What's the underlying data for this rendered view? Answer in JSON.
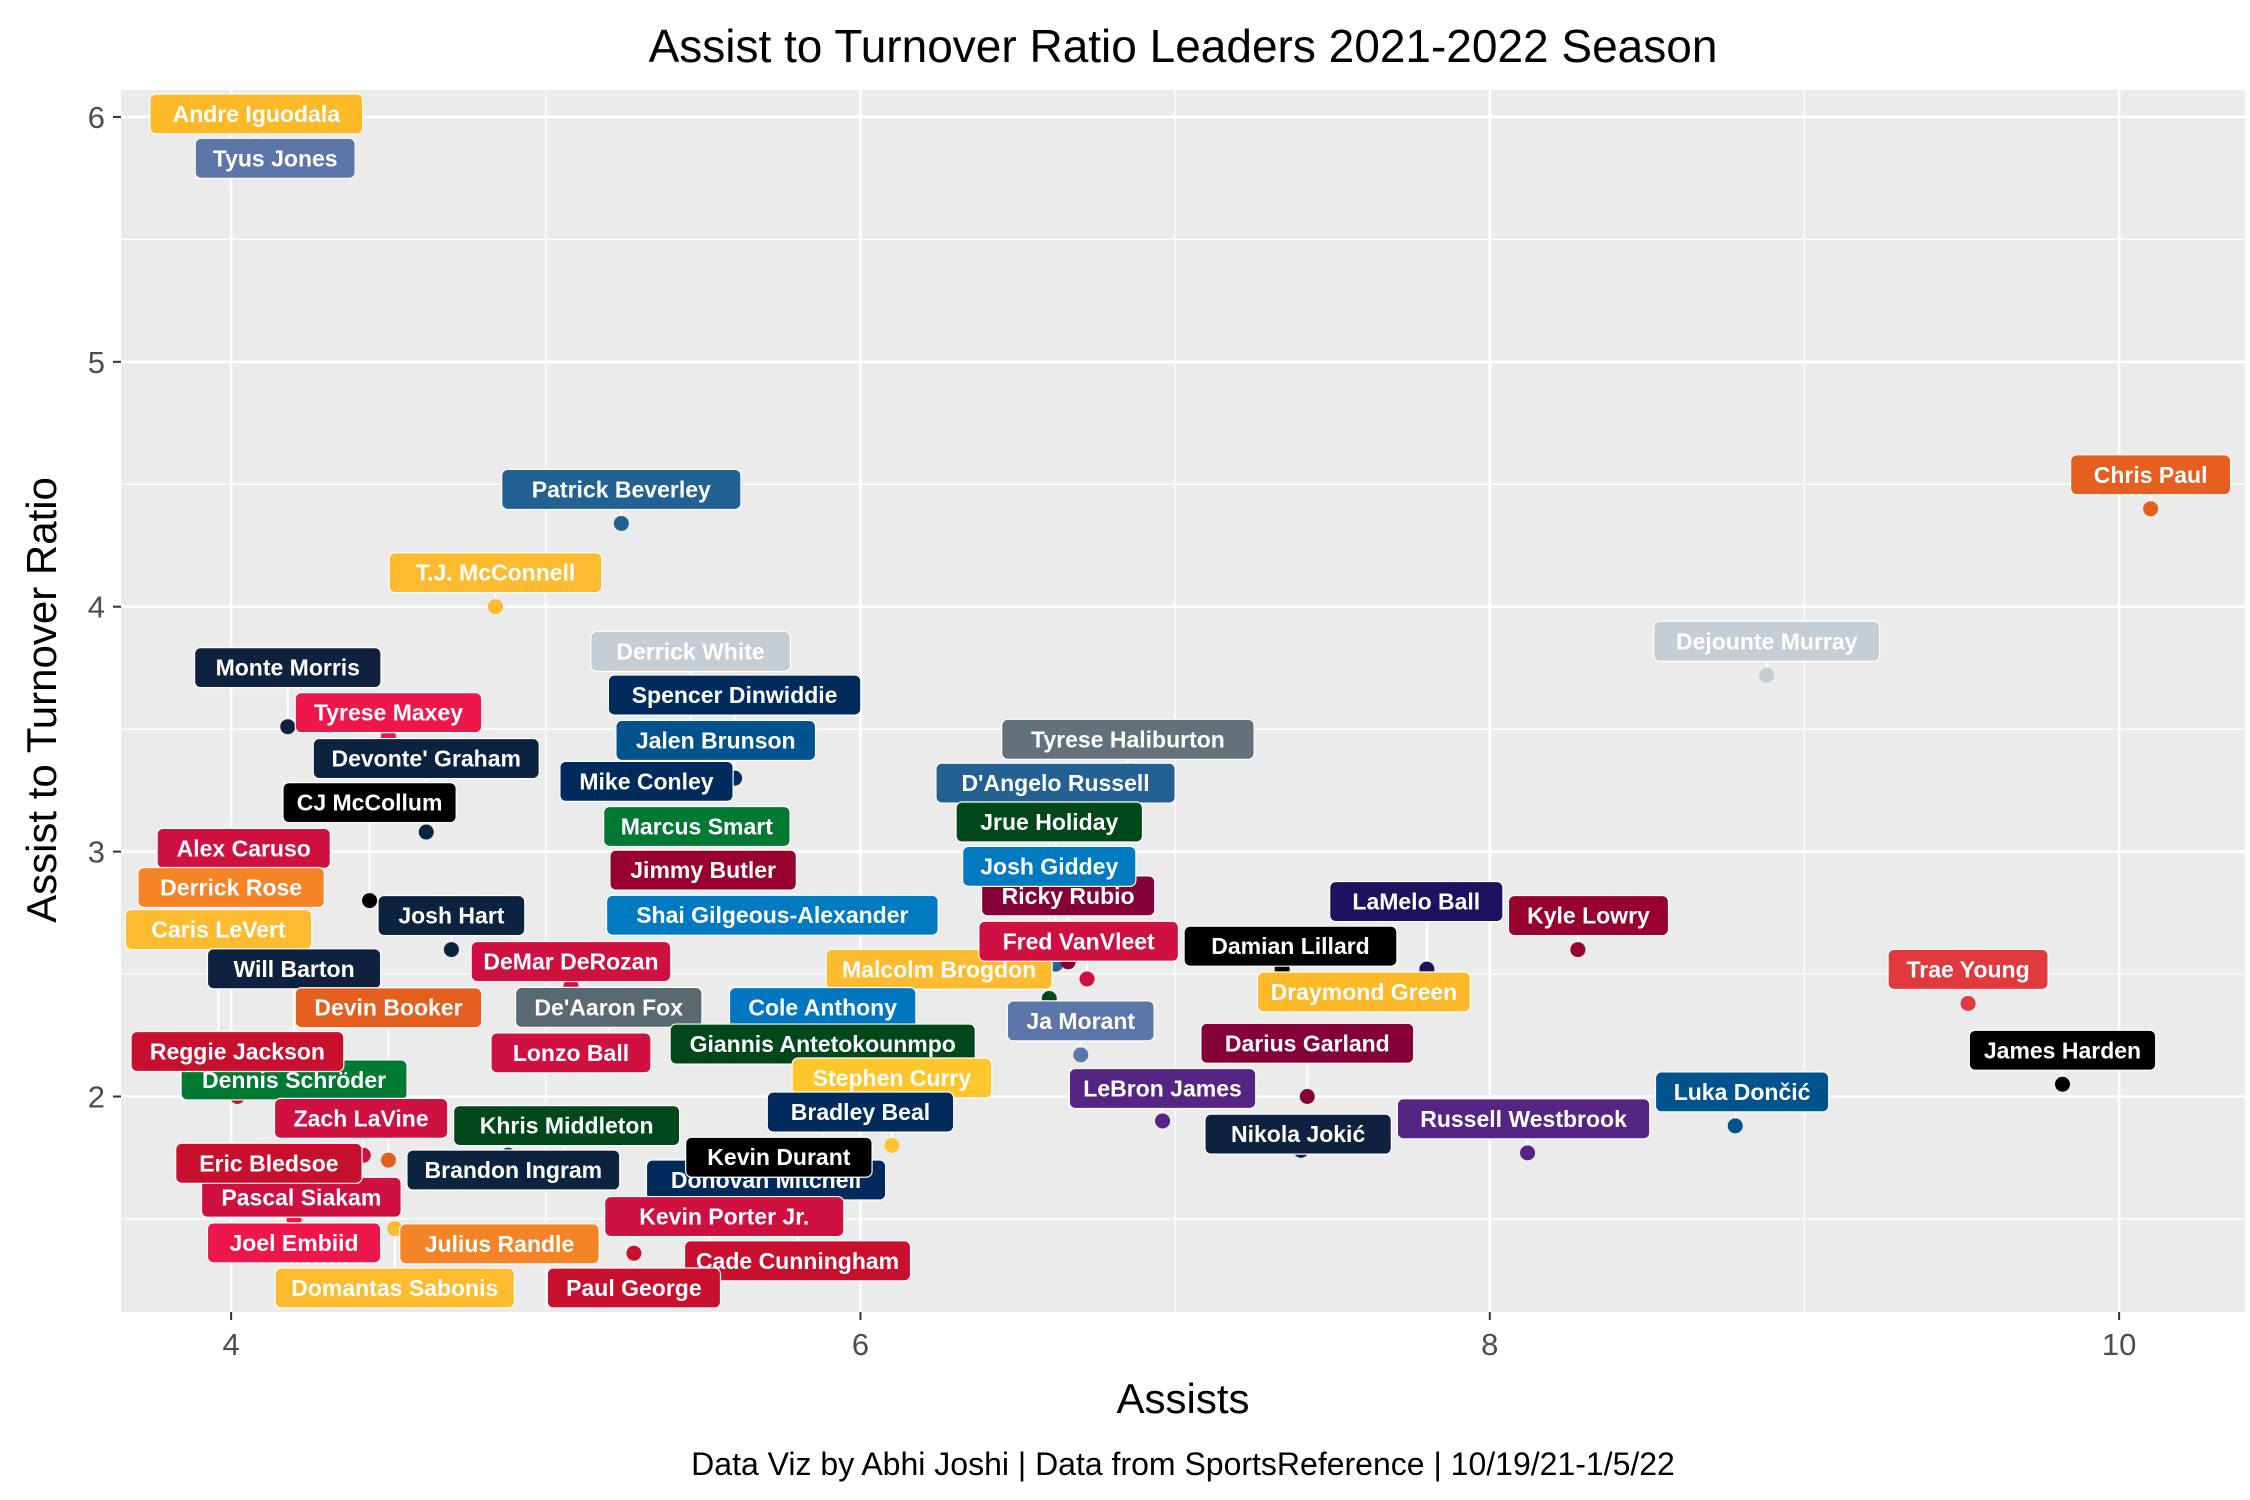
{
  "chart_data": {
    "type": "scatter",
    "title": "Assist to Turnover Ratio Leaders 2021-2022 Season",
    "xlabel": "Assists",
    "ylabel": "Assist to Turnover Ratio",
    "caption": "Data Viz by Abhi Joshi | Data from SportsReference | 10/19/21-1/5/22",
    "xlim": [
      3.65,
      10.4
    ],
    "ylim": [
      1.12,
      6.11
    ],
    "x_ticks": [
      "4",
      "6",
      "8",
      "10"
    ],
    "y_ticks": [
      "2",
      "3",
      "4",
      "5",
      "6"
    ],
    "grid": true,
    "points": [
      {
        "name": "Andre Iguodala",
        "x": 4.08,
        "y": 5.86,
        "color": "#FDB927",
        "text": "#ffffff"
      },
      {
        "name": "Tyus Jones",
        "x": 4.14,
        "y": 5.86,
        "color": "#5D76A9",
        "text": "#ffffff"
      },
      {
        "name": "Chris Paul",
        "x": 10.1,
        "y": 4.4,
        "color": "#E56020",
        "text": "#ffffff"
      },
      {
        "name": "Patrick Beverley",
        "x": 5.24,
        "y": 4.34,
        "color": "#236192",
        "text": "#ffffff"
      },
      {
        "name": "T.J. McConnell",
        "x": 4.84,
        "y": 4.0,
        "color": "#FDBB30",
        "text": "#ffffff"
      },
      {
        "name": "Derrick White",
        "x": 5.46,
        "y": 3.45,
        "color": "#C4CED4",
        "text": "#ffffff"
      },
      {
        "name": "Dejounte Murray",
        "x": 8.88,
        "y": 3.72,
        "color": "#C4CED4",
        "text": "#ffffff"
      },
      {
        "name": "Monte Morris",
        "x": 4.18,
        "y": 3.51,
        "color": "#0E2240",
        "text": "#ffffff"
      },
      {
        "name": "Mike Conley",
        "x": 5.32,
        "y": 3.31,
        "color": "#002B5C",
        "text": "#ffffff"
      },
      {
        "name": "Spencer Dinwiddie",
        "x": 5.6,
        "y": 3.3,
        "color": "#002B5C",
        "text": "#ffffff"
      },
      {
        "name": "Devonte' Graham",
        "x": 4.62,
        "y": 3.08,
        "color": "#0C2340",
        "text": "#ffffff"
      },
      {
        "name": "Tyrese Maxey",
        "x": 4.5,
        "y": 3.47,
        "color": "#ED174C",
        "text": "#ffffff"
      },
      {
        "name": "Jalen Brunson",
        "x": 5.54,
        "y": 3.24,
        "color": "#00538C",
        "text": "#ffffff"
      },
      {
        "name": "Malcolm Brogdon",
        "x": 6.25,
        "y": 2.5,
        "color": "#FDBB30",
        "text": "#ffffff"
      },
      {
        "name": "Tyrese Haliburton",
        "x": 6.85,
        "y": 3.1,
        "color": "#63727A",
        "text": "#ffffff"
      },
      {
        "name": "Alex Caruso",
        "x": 4.04,
        "y": 2.67,
        "color": "#CE1141",
        "text": "#ffffff"
      },
      {
        "name": "Marcus Smart",
        "x": 5.48,
        "y": 2.9,
        "color": "#007A33",
        "text": "#ffffff"
      },
      {
        "name": "D'Angelo Russell",
        "x": 6.62,
        "y": 2.54,
        "color": "#236192",
        "text": "#ffffff"
      },
      {
        "name": "Ricky Rubio",
        "x": 6.66,
        "y": 2.55,
        "color": "#860038",
        "text": "#ffffff"
      },
      {
        "name": "Damian Lillard",
        "x": 7.34,
        "y": 2.52,
        "color": "#000000",
        "text": "#ffffff"
      },
      {
        "name": "Derrick Rose",
        "x": 4.0,
        "y": 2.67,
        "color": "#F58426",
        "text": "#ffffff"
      },
      {
        "name": "CJ McCollum",
        "x": 4.44,
        "y": 2.8,
        "color": "#000000",
        "text": "#ffffff"
      },
      {
        "name": "Jimmy Butler",
        "x": 5.5,
        "y": 2.9,
        "color": "#98002E",
        "text": "#ffffff"
      },
      {
        "name": "Shai Gilgeous-Alexander",
        "x": 5.72,
        "y": 2.78,
        "color": "#007AC1",
        "text": "#ffffff"
      },
      {
        "name": "Josh Giddey",
        "x": 6.6,
        "y": 2.55,
        "color": "#007AC1",
        "text": "#ffffff"
      },
      {
        "name": "Fred VanVleet",
        "x": 6.72,
        "y": 2.48,
        "color": "#CE1141",
        "text": "#ffffff"
      },
      {
        "name": "LaMelo Ball",
        "x": 7.8,
        "y": 2.52,
        "color": "#1D1160",
        "text": "#ffffff"
      },
      {
        "name": "Kyle Lowry",
        "x": 8.28,
        "y": 2.6,
        "color": "#98002E",
        "text": "#ffffff"
      },
      {
        "name": "Josh Hart",
        "x": 4.7,
        "y": 2.6,
        "color": "#0C2340",
        "text": "#ffffff"
      },
      {
        "name": "DeMar DeRozan",
        "x": 5.08,
        "y": 2.45,
        "color": "#CE1141",
        "text": "#ffffff"
      },
      {
        "name": "Trae Young",
        "x": 9.52,
        "y": 2.38,
        "color": "#E03A3E",
        "text": "#ffffff"
      },
      {
        "name": "Caris LeVert",
        "x": 3.96,
        "y": 2.23,
        "color": "#FDBB30",
        "text": "#ffffff"
      },
      {
        "name": "Cole Anthony",
        "x": 5.88,
        "y": 2.12,
        "color": "#0077C0",
        "text": "#ffffff"
      },
      {
        "name": "Jrue Holiday",
        "x": 6.6,
        "y": 2.4,
        "color": "#00471B",
        "text": "#ffffff"
      },
      {
        "name": "Ja Morant",
        "x": 6.7,
        "y": 2.17,
        "color": "#5D76A9",
        "text": "#ffffff"
      },
      {
        "name": "Draymond Green",
        "x": 7.6,
        "y": 2.38,
        "color": "#FDB927",
        "text": "#ffffff"
      },
      {
        "name": "Lonzo Ball",
        "x": 5.08,
        "y": 2.13,
        "color": "#CE1141",
        "text": "#ffffff"
      },
      {
        "name": "Will Barton",
        "x": 4.2,
        "y": 2.2,
        "color": "#0E2240",
        "text": "#ffffff"
      },
      {
        "name": "De'Aaron Fox",
        "x": 5.2,
        "y": 2.17,
        "color": "#5A6870",
        "text": "#ffffff"
      },
      {
        "name": "James Harden",
        "x": 9.82,
        "y": 2.05,
        "color": "#000000",
        "text": "#ffffff"
      },
      {
        "name": "Dennis Schröder",
        "x": 4.2,
        "y": 2.05,
        "color": "#007A33",
        "text": "#ffffff"
      },
      {
        "name": "Reggie Jackson",
        "x": 4.02,
        "y": 2.0,
        "color": "#C8102E",
        "text": "#ffffff"
      },
      {
        "name": "Luka Dončić",
        "x": 8.78,
        "y": 1.88,
        "color": "#00538C",
        "text": "#ffffff"
      },
      {
        "name": "Giannis Antetokounmpo",
        "x": 5.88,
        "y": 1.78,
        "color": "#00471B",
        "text": "#ffffff"
      },
      {
        "name": "LeBron James",
        "x": 6.96,
        "y": 1.9,
        "color": "#552583",
        "text": "#ffffff"
      },
      {
        "name": "Darius Garland",
        "x": 7.42,
        "y": 2.0,
        "color": "#860038",
        "text": "#ffffff"
      },
      {
        "name": "Pascal Siakam",
        "x": 4.24,
        "y": 1.78,
        "color": "#CE1141",
        "text": "#ffffff"
      },
      {
        "name": "Brandon Ingram",
        "x": 4.88,
        "y": 1.76,
        "color": "#0C2340",
        "text": "#ffffff"
      },
      {
        "name": "Donovan Mitchell",
        "x": 5.7,
        "y": 1.78,
        "color": "#002B5C",
        "text": "#ffffff"
      },
      {
        "name": "Eric Bledsoe",
        "x": 4.12,
        "y": 1.78,
        "color": "#C8102E",
        "text": "#ffffff"
      },
      {
        "name": "Zach LaVine",
        "x": 4.42,
        "y": 1.76,
        "color": "#CE1141",
        "text": "#ffffff"
      },
      {
        "name": "Devin Booker",
        "x": 4.5,
        "y": 1.74,
        "color": "#E56020",
        "text": "#ffffff"
      },
      {
        "name": "Stephen Curry",
        "x": 6.1,
        "y": 1.8,
        "color": "#FFC72C",
        "text": "#ffffff"
      },
      {
        "name": "Nikola Jokić",
        "x": 7.4,
        "y": 1.78,
        "color": "#0E2240",
        "text": "#ffffff"
      },
      {
        "name": "Russell Westbrook",
        "x": 8.12,
        "y": 1.77,
        "color": "#552583",
        "text": "#ffffff"
      },
      {
        "name": "Khris Middleton",
        "x": 5.06,
        "y": 1.71,
        "color": "#00471B",
        "text": "#ffffff"
      },
      {
        "name": "Cade Cunningham",
        "x": 5.8,
        "y": 1.5,
        "color": "#C8102E",
        "text": "#ffffff"
      },
      {
        "name": "Kevin Durant",
        "x": 5.74,
        "y": 1.66,
        "color": "#000000",
        "text": "#ffffff"
      },
      {
        "name": "Bradley Beal",
        "x": 6.0,
        "y": 1.68,
        "color": "#002B5C",
        "text": "#ffffff"
      },
      {
        "name": "Joel Embiid",
        "x": 4.2,
        "y": 1.5,
        "color": "#ED174C",
        "text": "#ffffff"
      },
      {
        "name": "Domantas Sabonis",
        "x": 4.52,
        "y": 1.46,
        "color": "#FDBB30",
        "text": "#ffffff"
      },
      {
        "name": "Julius Randle",
        "x": 4.9,
        "y": 1.4,
        "color": "#F58426",
        "text": "#ffffff"
      },
      {
        "name": "Paul George",
        "x": 5.28,
        "y": 1.36,
        "color": "#C8102E",
        "text": "#ffffff"
      },
      {
        "name": "Kevin Porter Jr.",
        "x": 5.52,
        "y": 1.33,
        "color": "#CE1141",
        "text": "#ffffff"
      }
    ]
  }
}
